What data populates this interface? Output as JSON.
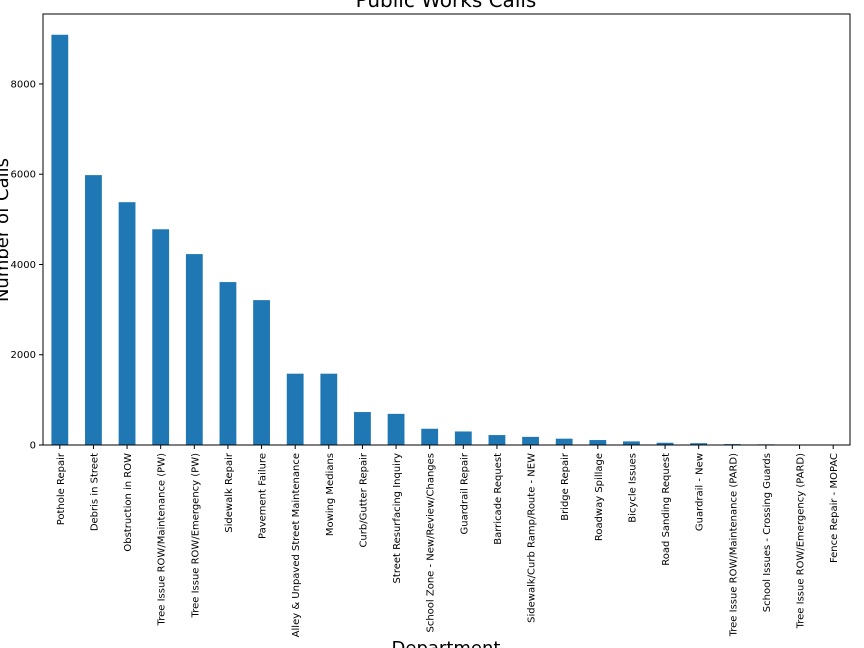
{
  "chart_data": {
    "type": "bar",
    "title": "Public Works Calls",
    "xlabel": "Department",
    "ylabel": "Number of Calls",
    "ylim": [
      0,
      9550
    ],
    "yticks": [
      0,
      2000,
      4000,
      6000,
      8000
    ],
    "ytick_labels": [
      "0",
      "2000",
      "4000",
      "6000",
      "8000"
    ],
    "grid": false,
    "bar_color": "#1f77b4",
    "categories": [
      "Pothole Repair",
      "Debris in Street",
      "Obstruction in ROW",
      "Tree Issue ROW/Maintenance (PW)",
      "Tree Issue ROW/Emergency (PW)",
      "Sidewalk Repair",
      "Pavement Failure",
      "Alley & Unpaved Street Maintenance",
      "Mowing Medians",
      "Curb/Gutter Repair",
      "Street Resurfacing Inquiry",
      "School Zone - New/Review/Changes",
      "Guardrail Repair",
      "Barricade Request",
      "Sidewalk/Curb Ramp/Route - NEW",
      "Bridge Repair",
      "Roadway Spillage",
      "Bicycle Issues",
      "Road Sanding Request",
      "Guardrail - New",
      "Tree Issue ROW/Maintenance (PARD)",
      "School Issues - Crossing Guards",
      "Tree Issue ROW/Emergency (PARD)",
      "Fence Repair - MOPAC"
    ],
    "values": [
      9090,
      5980,
      5380,
      4780,
      4230,
      3610,
      3210,
      1580,
      1580,
      730,
      690,
      360,
      300,
      220,
      180,
      140,
      110,
      80,
      50,
      40,
      20,
      15,
      10,
      3
    ]
  }
}
